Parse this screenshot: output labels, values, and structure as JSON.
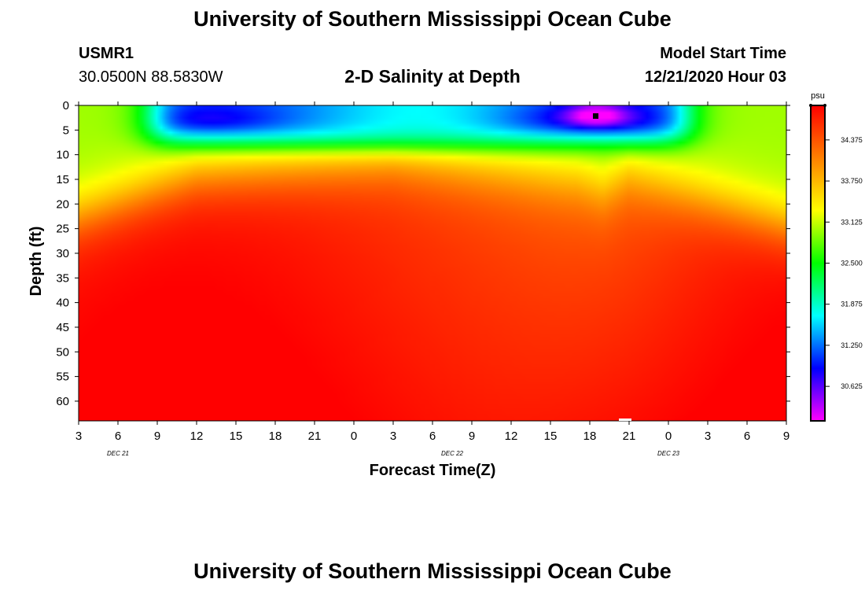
{
  "page": {
    "title_top": "University of Southern Mississippi Ocean Cube",
    "title_bottom": "University of Southern Mississippi Ocean Cube",
    "station_id": "USMR1",
    "station_coords": "30.0500N 88.5830W",
    "chart_title": "2-D Salinity at Depth",
    "model_start_label": "Model Start Time",
    "model_start_value": "12/21/2020 Hour 03"
  },
  "chart_data": {
    "type": "heatmap",
    "title": "2-D Salinity at Depth",
    "xlabel": "Forecast Time(Z)",
    "ylabel": "Depth (ft)",
    "y_ticks": [
      0,
      5,
      10,
      15,
      20,
      25,
      30,
      35,
      40,
      45,
      50,
      55,
      60
    ],
    "ylim": [
      0,
      64
    ],
    "y_inverted": true,
    "x_tick_labels": [
      "3",
      "6",
      "9",
      "12",
      "15",
      "18",
      "21",
      "0",
      "3",
      "6",
      "9",
      "12",
      "15",
      "18",
      "21",
      "0",
      "3",
      "6",
      "9"
    ],
    "x_hours_elapsed": [
      0,
      54
    ],
    "date_labels": [
      "DEC 21",
      "DEC 22",
      "DEC 23"
    ],
    "colorbar": {
      "unit": "psu",
      "tick_labels": [
        "34.375",
        "33.750",
        "33.125",
        "32.500",
        "31.875",
        "31.250",
        "30.625"
      ],
      "range": [
        30.1,
        34.9
      ]
    },
    "features": [
      {
        "kind": "fresh-surface-lens",
        "hours": [
          5.5,
          46.5
        ],
        "depth": [
          0,
          10
        ],
        "min_salinity": 30.4,
        "min_at_hour": 39.5,
        "min_at_depth": 2
      },
      {
        "kind": "halocline-depth",
        "hours": [
          0,
          9,
          24,
          38,
          40,
          42,
          54
        ],
        "depth": [
          22,
          14,
          11,
          15,
          17,
          14,
          24
        ]
      },
      {
        "kind": "deep-salinity",
        "value_range": [
          34.2,
          34.9
        ]
      }
    ],
    "grid": false
  },
  "icons": {
    "marker": "black-square-marker"
  },
  "colors": {
    "scale": [
      "#ff00ff",
      "#0000ff",
      "#00ffff",
      "#00ff00",
      "#ffff00",
      "#ff8000",
      "#ff0000"
    ]
  }
}
